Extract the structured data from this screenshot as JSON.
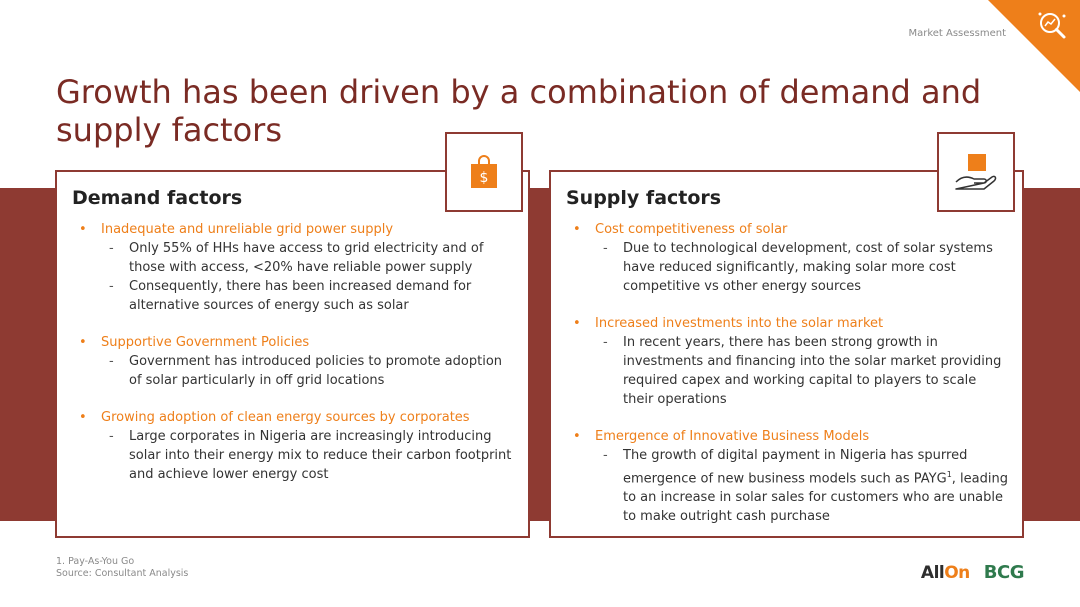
{
  "header": {
    "section": "Market Assessment",
    "title": "Growth has been driven by a combination of demand and supply factors"
  },
  "demand": {
    "heading": "Demand factors",
    "items": [
      {
        "label": "Inadequate and unreliable grid power supply",
        "subs": [
          "Only 55% of HHs have access to grid electricity and of those with access, <20% have reliable power supply",
          "Consequently, there has been increased demand for alternative sources of energy such as solar"
        ]
      },
      {
        "label": "Supportive Government Policies",
        "subs": [
          "Government has introduced policies to promote adoption of solar particularly in off grid locations"
        ]
      },
      {
        "label": "Growing adoption of clean energy sources by corporates",
        "subs": [
          "Large corporates in Nigeria are increasingly introducing solar into their energy mix to reduce their carbon footprint and achieve lower energy cost"
        ]
      }
    ]
  },
  "supply": {
    "heading": "Supply factors",
    "items": [
      {
        "label": "Cost competitiveness of solar",
        "subs": [
          "Due to technological development, cost of solar systems have reduced significantly, making solar more cost competitive vs other energy sources"
        ]
      },
      {
        "label": "Increased investments into the solar market",
        "subs": [
          "In recent years, there has been strong growth in investments and financing into the solar market providing required capex and working capital to players to scale their operations"
        ]
      },
      {
        "label": "Emergence of Innovative Business Models",
        "subs": [
          "The growth of digital payment in Nigeria has spurred emergence of new business models such as PAYG",
          "1",
          ", leading to an increase in solar sales for customers who are unable to make outright cash purchase"
        ]
      }
    ]
  },
  "footer": {
    "footnote": "1. Pay-As-You Go",
    "source": "Source: Consultant Analysis"
  },
  "logos": {
    "allon_prefix": "All",
    "allon_suffix": "On",
    "bcg": "BCG"
  },
  "colors": {
    "accent": "#ee7f1a",
    "maroon": "#8e3a32",
    "title": "#7a2b24"
  },
  "icons": [
    "analysis-magnifier-icon",
    "shopping-bag-dollar-icon",
    "hand-holding-box-icon"
  ]
}
